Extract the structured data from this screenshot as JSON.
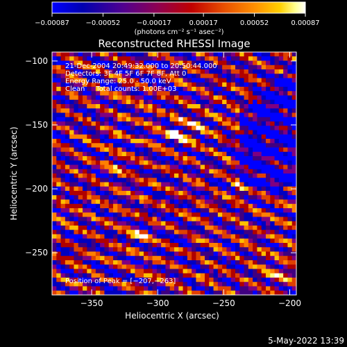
{
  "chart_data": {
    "type": "heatmap",
    "title": "Reconstructed RHESSI Image",
    "xlabel": "Heliocentric X (arcsec)",
    "ylabel": "Heliocentric Y (arcsec)",
    "xlim": [
      -380,
      -195
    ],
    "ylim": [
      -283,
      -93
    ],
    "x_ticks": [
      -350,
      -300,
      -250,
      -200
    ],
    "x_tick_labels": [
      "−350",
      "−300",
      "−250",
      "−200"
    ],
    "y_ticks": [
      -100,
      -150,
      -200,
      -250
    ],
    "y_tick_labels": [
      "−100",
      "−150",
      "−200",
      "−250"
    ],
    "colorbar": {
      "ticks": [
        -0.00087,
        -0.00052,
        -0.00017,
        0.00017,
        0.00052,
        0.00087
      ],
      "tick_labels": [
        "−0.00087",
        "−0.00052",
        "−0.00017",
        "0.00017",
        "0.00052",
        "0.00087"
      ],
      "unit_label": "(photons cm⁻² s⁻¹ asec⁻²)",
      "range": [
        -0.00087,
        0.00087
      ]
    },
    "annotations": [
      "21-Dec-2004 20:49:32.000 to 20:50:44.000",
      "Detectors: 3F 4F 5F 6F 7F 8F, Att 0",
      "Energy Range: 25.0 - 50.0 keV",
      "Clean     Total counts: 1.00E+03"
    ],
    "peak_label": "Position of Peak = [−207,−263]",
    "peak_position": [
      -207,
      -263
    ],
    "grid": false,
    "colormap": [
      "#0000ff",
      "#0000c0",
      "#400080",
      "#800080",
      "#b00000",
      "#e04000",
      "#ff8000",
      "#ffc000",
      "#ffff80",
      "#ffffff"
    ]
  },
  "footer": {
    "timestamp": "5-May-2022 13:39"
  }
}
